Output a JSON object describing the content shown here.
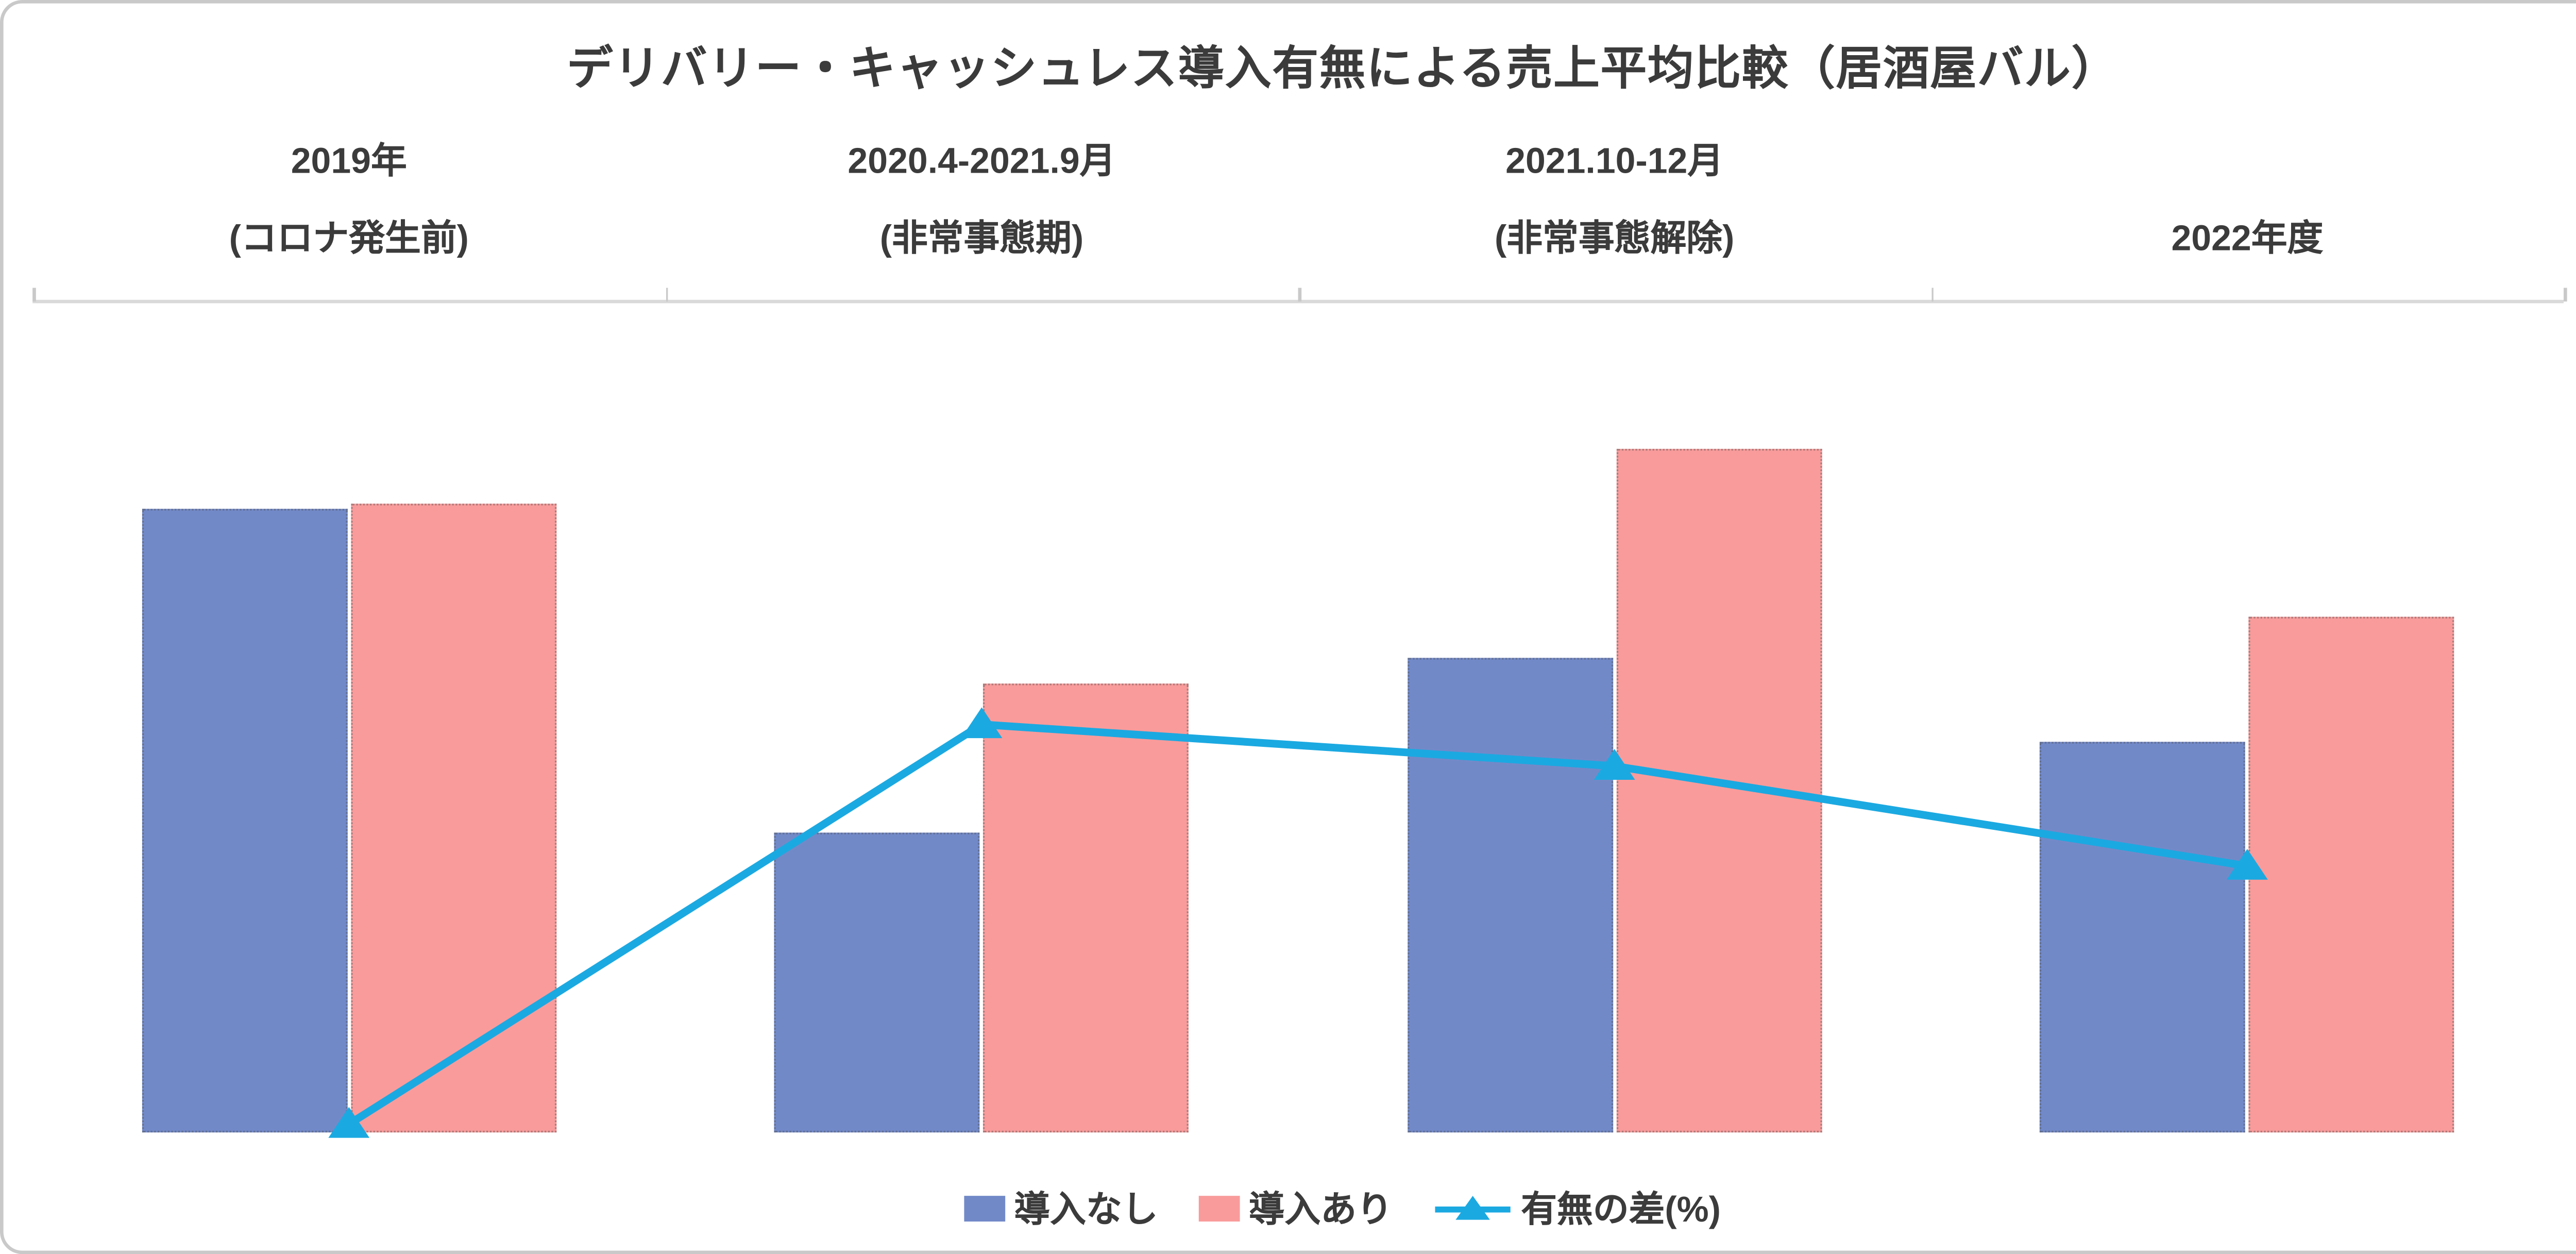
{
  "chart_data": {
    "type": "bar",
    "title": "デリバリー・キャッシュレス導入有無による売上平均比較（居酒屋バル）",
    "categories": [
      {
        "line1": "2019年",
        "line2": "(コロナ発生前)"
      },
      {
        "line1": "2020.4-2021.9月",
        "line2": "(非常事態期)"
      },
      {
        "line1": "2021.10-12月",
        "line2": "(非常事態解除)"
      },
      {
        "line1": "",
        "line2": "2022年度"
      }
    ],
    "series": [
      {
        "name": "導入なし",
        "type": "bar",
        "color": "#7289C8",
        "values": [
          75,
          36,
          57,
          47
        ]
      },
      {
        "name": "導入あり",
        "type": "bar",
        "color": "#F99B9B",
        "values": [
          75.5,
          54,
          82,
          62
        ]
      },
      {
        "name": "有無の差(%)",
        "type": "line",
        "color": "#1BA9E1",
        "marker": "triangle",
        "values": [
          1,
          49,
          44,
          32
        ]
      }
    ],
    "ylim": [
      0,
      100
    ],
    "ytick_step": 10,
    "ytick_suffix": "%",
    "y_axis_side": "right",
    "legend_position": "bottom",
    "grid": false
  },
  "styles": {
    "text_color": "#3B3B3B",
    "axis_line_color": "#D9D9D9",
    "border_color": "#C9C9C9",
    "background": "#FFFFFF"
  }
}
